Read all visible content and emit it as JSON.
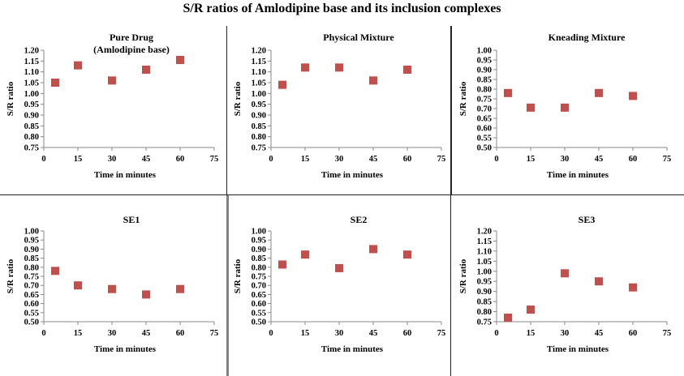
{
  "title": "S/R ratios of Amlodipine base and its inclusion complexes",
  "colors": {
    "marker": "#c0504d",
    "axis": "#888888",
    "text": "#000000"
  },
  "chart_data": [
    {
      "type": "scatter",
      "title": [
        "Pure Drug",
        "(Amlodipine base)"
      ],
      "xlabel": "Time in minutes",
      "ylabel": "S/R ratio",
      "xlim": [
        0,
        75
      ],
      "xticks": [
        0,
        15,
        30,
        45,
        60,
        75
      ],
      "ylim": [
        0.75,
        1.2
      ],
      "ystep": 0.05,
      "x": [
        5,
        15,
        30,
        45,
        60
      ],
      "y": [
        1.05,
        1.13,
        1.06,
        1.11,
        1.155
      ],
      "grid": false,
      "legend": "none"
    },
    {
      "type": "scatter",
      "title": [
        "Physical Mixture"
      ],
      "xlabel": "Time in minutes",
      "ylabel": "S/R ratio",
      "xlim": [
        0,
        75
      ],
      "xticks": [
        0,
        15,
        30,
        45,
        60,
        75
      ],
      "ylim": [
        0.75,
        1.2
      ],
      "ystep": 0.05,
      "x": [
        5,
        15,
        30,
        45,
        60
      ],
      "y": [
        1.04,
        1.12,
        1.12,
        1.06,
        1.11
      ],
      "grid": false,
      "legend": "none"
    },
    {
      "type": "scatter",
      "title": [
        "Kneading Mixture"
      ],
      "xlabel": "Time in minutes",
      "ylabel": "S/R ratio",
      "xlim": [
        0,
        75
      ],
      "xticks": [
        0,
        15,
        30,
        45,
        60,
        75
      ],
      "ylim": [
        0.5,
        1.0
      ],
      "ystep": 0.05,
      "x": [
        5,
        15,
        30,
        45,
        60
      ],
      "y": [
        0.78,
        0.705,
        0.705,
        0.78,
        0.765
      ],
      "grid": false,
      "legend": "none"
    },
    {
      "type": "scatter",
      "title": [
        "SE1"
      ],
      "xlabel": "Time in minutes",
      "ylabel": "S/R ratio",
      "xlim": [
        0,
        75
      ],
      "xticks": [
        0,
        15,
        30,
        45,
        60,
        75
      ],
      "ylim": [
        0.5,
        1.0
      ],
      "ystep": 0.05,
      "x": [
        5,
        15,
        30,
        45,
        60
      ],
      "y": [
        0.78,
        0.7,
        0.68,
        0.65,
        0.68
      ],
      "grid": false,
      "legend": "none"
    },
    {
      "type": "scatter",
      "title": [
        "SE2"
      ],
      "xlabel": "Time in minutes",
      "ylabel": "S/R ratio",
      "xlim": [
        0,
        75
      ],
      "xticks": [
        0,
        15,
        30,
        45,
        60,
        75
      ],
      "ylim": [
        0.5,
        1.0
      ],
      "ystep": 0.05,
      "x": [
        5,
        15,
        30,
        45,
        60
      ],
      "y": [
        0.815,
        0.87,
        0.795,
        0.9,
        0.87
      ],
      "grid": false,
      "legend": "none"
    },
    {
      "type": "scatter",
      "title": [
        "SE3"
      ],
      "xlabel": "Time in minutes",
      "ylabel": "S/R ratio",
      "xlim": [
        0,
        75
      ],
      "xticks": [
        0,
        15,
        30,
        45,
        60,
        75
      ],
      "ylim": [
        0.75,
        1.2
      ],
      "ystep": 0.05,
      "x": [
        5,
        15,
        30,
        45,
        60
      ],
      "y": [
        0.77,
        0.81,
        0.99,
        0.95,
        0.92
      ],
      "grid": false,
      "legend": "none"
    }
  ]
}
